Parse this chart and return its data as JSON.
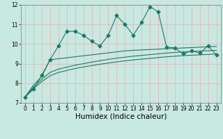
{
  "title": "",
  "xlabel": "Humidex (Indice chaleur)",
  "bg_color": "#c8e8e0",
  "grid_color": "#e8b8b8",
  "line_color": "#1a7a6a",
  "x_values": [
    0,
    1,
    2,
    3,
    4,
    5,
    6,
    7,
    8,
    9,
    10,
    11,
    12,
    13,
    14,
    15,
    16,
    17,
    18,
    19,
    20,
    21,
    22,
    23
  ],
  "main_line": [
    7.3,
    7.7,
    8.4,
    9.2,
    9.9,
    10.65,
    10.65,
    10.45,
    10.15,
    9.9,
    10.45,
    11.45,
    11.0,
    10.45,
    11.1,
    11.9,
    11.65,
    9.85,
    9.8,
    9.5,
    9.65,
    9.55,
    9.9,
    9.45
  ],
  "smooth_line1": [
    7.3,
    7.9,
    8.35,
    9.2,
    9.25,
    9.3,
    9.35,
    9.4,
    9.45,
    9.5,
    9.55,
    9.6,
    9.65,
    9.68,
    9.7,
    9.72,
    9.74,
    9.76,
    9.78,
    9.8,
    9.82,
    9.84,
    9.86,
    9.88
  ],
  "smooth_line2": [
    7.3,
    7.8,
    8.2,
    8.55,
    8.72,
    8.82,
    8.92,
    9.0,
    9.08,
    9.15,
    9.22,
    9.28,
    9.33,
    9.38,
    9.42,
    9.46,
    9.5,
    9.54,
    9.57,
    9.6,
    9.62,
    9.64,
    9.66,
    9.68
  ],
  "smooth_line3": [
    7.3,
    7.72,
    8.08,
    8.38,
    8.55,
    8.65,
    8.75,
    8.83,
    8.9,
    8.97,
    9.03,
    9.09,
    9.14,
    9.19,
    9.23,
    9.27,
    9.31,
    9.35,
    9.38,
    9.41,
    9.43,
    9.45,
    9.47,
    9.49
  ],
  "ylim": [
    7.0,
    12.0
  ],
  "xlim_min": -0.5,
  "xlim_max": 23.5,
  "yticks": [
    7,
    8,
    9,
    10,
    11,
    12
  ],
  "xticks": [
    0,
    1,
    2,
    3,
    4,
    5,
    6,
    7,
    8,
    9,
    10,
    11,
    12,
    13,
    14,
    15,
    16,
    17,
    18,
    19,
    20,
    21,
    22,
    23
  ],
  "tick_fontsize": 5.5,
  "xlabel_fontsize": 7.5,
  "marker": "D",
  "marker_size": 2.5,
  "linewidth": 0.8
}
